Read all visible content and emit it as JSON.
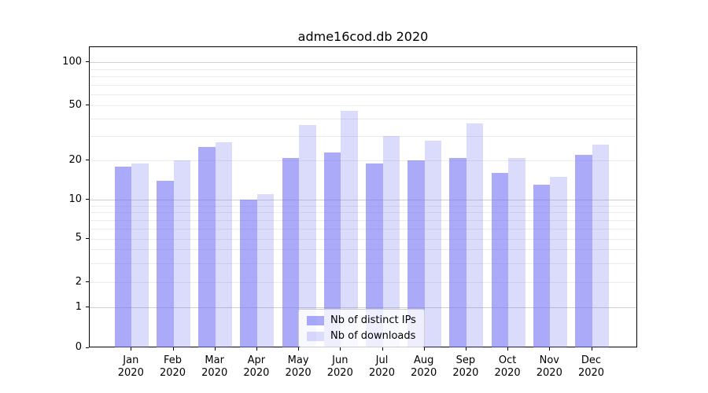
{
  "chart_data": {
    "type": "bar",
    "title": "adme16cod.db 2020",
    "categories": [
      "Jan\n2020",
      "Feb\n2020",
      "Mar\n2020",
      "Apr\n2020",
      "May\n2020",
      "Jun\n2020",
      "Jul\n2020",
      "Aug\n2020",
      "Sep\n2020",
      "Oct\n2020",
      "Nov\n2020",
      "Dec\n2020"
    ],
    "series": [
      {
        "name": "Nb of distinct IPs",
        "color": "rgba(113,113,245,0.6)",
        "values": [
          18,
          14,
          25,
          10,
          21,
          23,
          19,
          20,
          21,
          16,
          13,
          22
        ]
      },
      {
        "name": "Nb of downloads",
        "color": "rgba(113,113,245,0.25)",
        "values": [
          19,
          20,
          27,
          11,
          36,
          46,
          30,
          28,
          37,
          21,
          15,
          26
        ]
      }
    ],
    "y_ticks": [
      0,
      1,
      2,
      5,
      10,
      20,
      50,
      100
    ],
    "y_scale": "symlog",
    "ylim": [
      0,
      128
    ],
    "xlabel": "",
    "ylabel": "",
    "grid": "on",
    "legend_position": "lower center",
    "colors": {
      "bar_dark": "#aaaaf9",
      "bar_light": "#dbdbf8",
      "grid_major": "#cfcfcf",
      "grid_minor": "#ebebeb",
      "axis": "#000000",
      "background": "#ffffff"
    }
  }
}
